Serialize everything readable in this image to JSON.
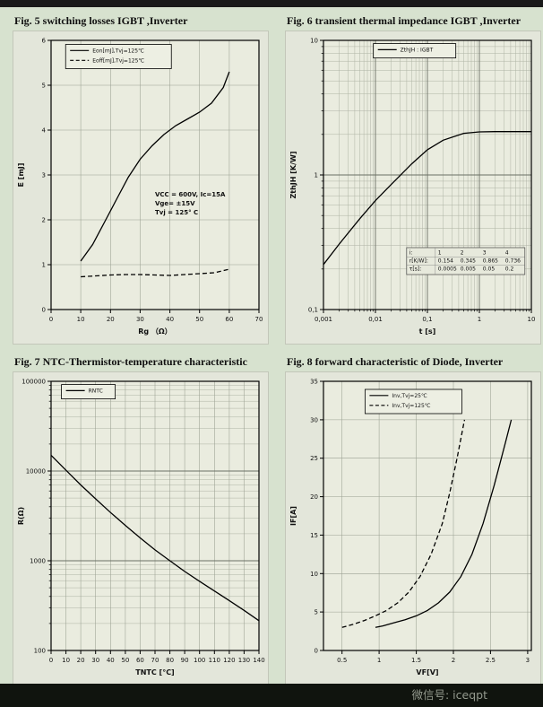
{
  "page": {
    "footer_text": "微信号: iceqpt"
  },
  "chart_data": [
    {
      "id": "fig5",
      "type": "line",
      "title": "Fig. 5 switching losses IGBT ,Inverter",
      "xlabel": "Rg （Ω）",
      "ylabel": "E [mJ]",
      "xscale": "linear",
      "yscale": "linear",
      "xlim": [
        0,
        70
      ],
      "ylim": [
        0,
        6
      ],
      "xticks": [
        0,
        10,
        20,
        30,
        40,
        50,
        60,
        70
      ],
      "xtick_labels": [
        "0",
        "10",
        "20",
        "30",
        "40",
        "50",
        "60",
        "70"
      ],
      "yticks": [
        0,
        1,
        2,
        3,
        4,
        5,
        6
      ],
      "ytick_labels": [
        "0",
        "1",
        "2",
        "3",
        "4",
        "5",
        "6"
      ],
      "grid": true,
      "series": [
        {
          "name": "Eon[mJ],Tvj=125℃",
          "dash": "solid",
          "points": [
            [
              10,
              1.08
            ],
            [
              14,
              1.45
            ],
            [
              18,
              1.95
            ],
            [
              22,
              2.45
            ],
            [
              26,
              2.95
            ],
            [
              30,
              3.35
            ],
            [
              34,
              3.65
            ],
            [
              38,
              3.9
            ],
            [
              42,
              4.1
            ],
            [
              46,
              4.25
            ],
            [
              50,
              4.4
            ],
            [
              54,
              4.6
            ],
            [
              58,
              4.95
            ],
            [
              60,
              5.3
            ]
          ]
        },
        {
          "name": "Eoff[mJ],Tvj=125℃",
          "dash": "dashed",
          "points": [
            [
              10,
              0.73
            ],
            [
              15,
              0.75
            ],
            [
              20,
              0.77
            ],
            [
              25,
              0.78
            ],
            [
              30,
              0.78
            ],
            [
              35,
              0.77
            ],
            [
              40,
              0.76
            ],
            [
              45,
              0.78
            ],
            [
              50,
              0.8
            ],
            [
              55,
              0.82
            ],
            [
              60,
              0.9
            ]
          ]
        }
      ],
      "legend": {
        "x": 0.07,
        "y": 0.015,
        "w": 118
      },
      "annotation": {
        "x": 0.5,
        "y": 0.58,
        "lines": [
          "VCC = 600V, Ic=15A",
          "Vge= ±15V",
          "Tvj = 125° C"
        ]
      }
    },
    {
      "id": "fig6",
      "type": "line",
      "title": "Fig. 6  transient thermal impedance IGBT ,Inverter",
      "xlabel": "t [s]",
      "ylabel": "ZthJH [K/W]",
      "xscale": "log",
      "yscale": "log",
      "xlim": [
        0.001,
        10
      ],
      "ylim": [
        0.1,
        10
      ],
      "xticks": [
        0.001,
        0.01,
        0.1,
        1,
        10
      ],
      "xtick_labels": [
        "0,001",
        "0,01",
        "0,1",
        "1",
        "10"
      ],
      "yticks": [
        0.1,
        1,
        10
      ],
      "ytick_labels": [
        "0,1",
        "1",
        "10"
      ],
      "grid": true,
      "series": [
        {
          "name": "ZthJH : IGBT",
          "dash": "solid",
          "points": [
            [
              0.001,
              0.216
            ],
            [
              0.002,
              0.306
            ],
            [
              0.005,
              0.473
            ],
            [
              0.01,
              0.645
            ],
            [
              0.02,
              0.848
            ],
            [
              0.05,
              1.21
            ],
            [
              0.1,
              1.54
            ],
            [
              0.2,
              1.81
            ],
            [
              0.5,
              2.04
            ],
            [
              1,
              2.09
            ],
            [
              2,
              2.1
            ],
            [
              5,
              2.1
            ],
            [
              10,
              2.1
            ]
          ]
        }
      ],
      "legend": {
        "x": 0.24,
        "y": 0.012,
        "w": 92
      },
      "table": {
        "x": 0.4,
        "y": 0.77,
        "rows": [
          [
            "i:",
            "1",
            "2",
            "3",
            "4"
          ],
          [
            "r[K/W]:",
            "0.154",
            "0.345",
            "0.865",
            "0.736"
          ],
          [
            "τ[s]:",
            "0.0005",
            "0.005",
            "0.05",
            "0.2"
          ]
        ]
      }
    },
    {
      "id": "fig7",
      "type": "line",
      "title": "Fig. 7  NTC-Thermistor-temperature characteristic",
      "xlabel": "TNTC [°C]",
      "ylabel": "R(Ω)",
      "xscale": "linear",
      "yscale": "log",
      "xlim": [
        0,
        140
      ],
      "ylim": [
        100,
        100000
      ],
      "xticks": [
        0,
        10,
        20,
        30,
        40,
        50,
        60,
        70,
        80,
        90,
        100,
        110,
        120,
        130,
        140
      ],
      "xtick_labels": [
        "0",
        "10",
        "20",
        "30",
        "40",
        "50",
        "60",
        "70",
        "80",
        "90",
        "100",
        "110",
        "120",
        "130",
        "140"
      ],
      "yticks": [
        100,
        1000,
        10000,
        100000
      ],
      "ytick_labels": [
        "100",
        "1000",
        "10000",
        "100000"
      ],
      "grid": true,
      "series": [
        {
          "name": "RNTC",
          "dash": "solid",
          "points": [
            [
              0,
              15000
            ],
            [
              10,
              10200
            ],
            [
              20,
              7000
            ],
            [
              30,
              4900
            ],
            [
              40,
              3450
            ],
            [
              50,
              2480
            ],
            [
              60,
              1800
            ],
            [
              70,
              1320
            ],
            [
              80,
              1000
            ],
            [
              90,
              760
            ],
            [
              100,
              590
            ],
            [
              110,
              460
            ],
            [
              120,
              360
            ],
            [
              130,
              280
            ],
            [
              140,
              215
            ]
          ]
        }
      ],
      "legend": {
        "x": 0.05,
        "y": 0.012,
        "w": 60
      }
    },
    {
      "id": "fig8",
      "type": "line",
      "title": "Fig. 8  forward characteristic of Diode, Inverter",
      "xlabel": "VF[V]",
      "ylabel": "IF[A]",
      "xscale": "linear",
      "yscale": "linear",
      "xlim": [
        0.25,
        3.05
      ],
      "ylim": [
        0,
        35
      ],
      "xticks": [
        0.5,
        1,
        1.5,
        2,
        2.5,
        3
      ],
      "xtick_labels": [
        "0.5",
        "1",
        "1.5",
        "2",
        "2.5",
        "3"
      ],
      "yticks": [
        0,
        5,
        10,
        15,
        20,
        25,
        30,
        35
      ],
      "ytick_labels": [
        "0",
        "5",
        "10",
        "15",
        "20",
        "25",
        "30",
        "35"
      ],
      "grid": true,
      "series": [
        {
          "name": "Inv,Tvj=25℃",
          "dash": "solid",
          "points": [
            [
              0.95,
              3
            ],
            [
              1.05,
              3.2
            ],
            [
              1.2,
              3.6
            ],
            [
              1.35,
              4.0
            ],
            [
              1.5,
              4.5
            ],
            [
              1.65,
              5.2
            ],
            [
              1.8,
              6.2
            ],
            [
              1.95,
              7.6
            ],
            [
              2.1,
              9.6
            ],
            [
              2.25,
              12.5
            ],
            [
              2.4,
              16.5
            ],
            [
              2.55,
              21.5
            ],
            [
              2.7,
              27
            ],
            [
              2.78,
              30
            ]
          ]
        },
        {
          "name": "Inv,Tvj=125℃",
          "dash": "dashed",
          "points": [
            [
              0.5,
              3
            ],
            [
              0.65,
              3.4
            ],
            [
              0.8,
              3.9
            ],
            [
              0.95,
              4.5
            ],
            [
              1.1,
              5.2
            ],
            [
              1.25,
              6.2
            ],
            [
              1.4,
              7.6
            ],
            [
              1.55,
              9.6
            ],
            [
              1.7,
              12.5
            ],
            [
              1.85,
              16.5
            ],
            [
              1.95,
              20.5
            ],
            [
              2.05,
              25
            ],
            [
              2.15,
              30
            ]
          ]
        }
      ],
      "legend": {
        "x": 0.2,
        "y": 0.03,
        "w": 108
      }
    }
  ]
}
